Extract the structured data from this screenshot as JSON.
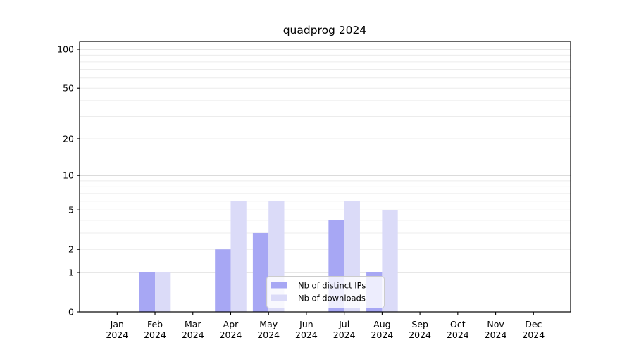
{
  "chart_data": {
    "type": "bar",
    "title": "quadprog 2024",
    "x": {
      "categories": [
        "Jan",
        "Feb",
        "Mar",
        "Apr",
        "May",
        "Jun",
        "Jul",
        "Aug",
        "Sep",
        "Oct",
        "Nov",
        "Dec"
      ],
      "year_label": "2024"
    },
    "series": [
      {
        "name": "Nb of distinct IPs",
        "color": "#a7a7f4",
        "values": [
          0,
          1,
          0,
          2,
          3,
          0,
          4,
          1,
          0,
          0,
          0,
          0
        ]
      },
      {
        "name": "Nb of downloads",
        "color": "#dbdbf8",
        "values": [
          0,
          1,
          0,
          6,
          6,
          0,
          6,
          5,
          0,
          0,
          0,
          0
        ]
      }
    ],
    "yscale": "log1p",
    "ylim": [
      0,
      115
    ],
    "y_ticks": [
      0,
      1,
      2,
      5,
      10,
      20,
      50,
      100
    ],
    "grid": {
      "major_values": [
        1,
        10,
        100
      ],
      "minor_values": [
        2,
        3,
        4,
        5,
        6,
        7,
        8,
        9,
        20,
        30,
        40,
        50,
        60,
        70,
        80,
        90
      ],
      "major_color": "#cfcfcf",
      "minor_color": "#ececec"
    },
    "legend": {
      "position": "lower-center",
      "background": "#ffffff",
      "border_color": "#cccccc"
    },
    "axis_color": "#000000",
    "background": "#ffffff"
  }
}
